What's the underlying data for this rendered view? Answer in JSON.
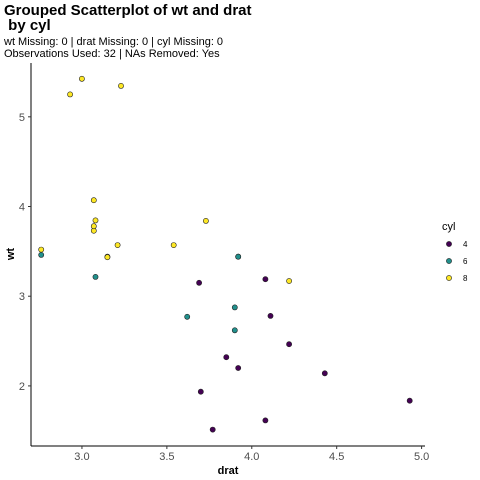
{
  "chart_data": {
    "type": "scatter",
    "title_lines": [
      "Grouped Scatterplot of wt and drat",
      " by cyl"
    ],
    "subtitle_lines": [
      "wt Missing: 0 | drat Missing: 0 | cyl Missing: 0",
      "Observations Used: 32 | NAs Removed: Yes"
    ],
    "xlabel": "drat",
    "ylabel": "wt",
    "xlim": [
      2.7,
      5.02
    ],
    "ylim": [
      1.33,
      5.6
    ],
    "x_ticks": [
      3.0,
      3.5,
      4.0,
      4.5,
      5.0
    ],
    "x_tick_labels": [
      "3.0",
      "3.5",
      "4.0",
      "4.5",
      "5.0"
    ],
    "y_ticks": [
      2,
      3,
      4,
      5
    ],
    "y_tick_labels": [
      "2",
      "3",
      "4",
      "5"
    ],
    "grid": false,
    "legend": {
      "title": "cyl",
      "position": "right"
    },
    "series": [
      {
        "name": "4",
        "color": "#440154",
        "x": [
          3.85,
          4.08,
          3.69,
          3.92,
          4.08,
          4.93,
          4.22,
          3.7,
          4.43,
          3.77,
          4.11
        ],
        "y": [
          2.32,
          3.19,
          3.15,
          2.2,
          1.615,
          1.835,
          2.465,
          1.935,
          2.14,
          1.513,
          2.78
        ]
      },
      {
        "name": "6",
        "color": "#21908C",
        "x": [
          3.9,
          3.9,
          3.08,
          2.76,
          3.92,
          3.92,
          3.62
        ],
        "y": [
          2.62,
          2.875,
          3.215,
          3.46,
          3.44,
          3.44,
          2.77
        ]
      },
      {
        "name": "8",
        "color": "#FDE725",
        "x": [
          3.15,
          3.21,
          3.07,
          3.07,
          3.07,
          2.93,
          3.0,
          3.23,
          2.76,
          3.15,
          3.73,
          3.08,
          4.22,
          3.54
        ],
        "y": [
          3.44,
          3.57,
          4.07,
          3.73,
          3.78,
          5.25,
          5.424,
          5.345,
          3.52,
          3.435,
          3.84,
          3.845,
          3.17,
          3.57
        ]
      }
    ]
  }
}
